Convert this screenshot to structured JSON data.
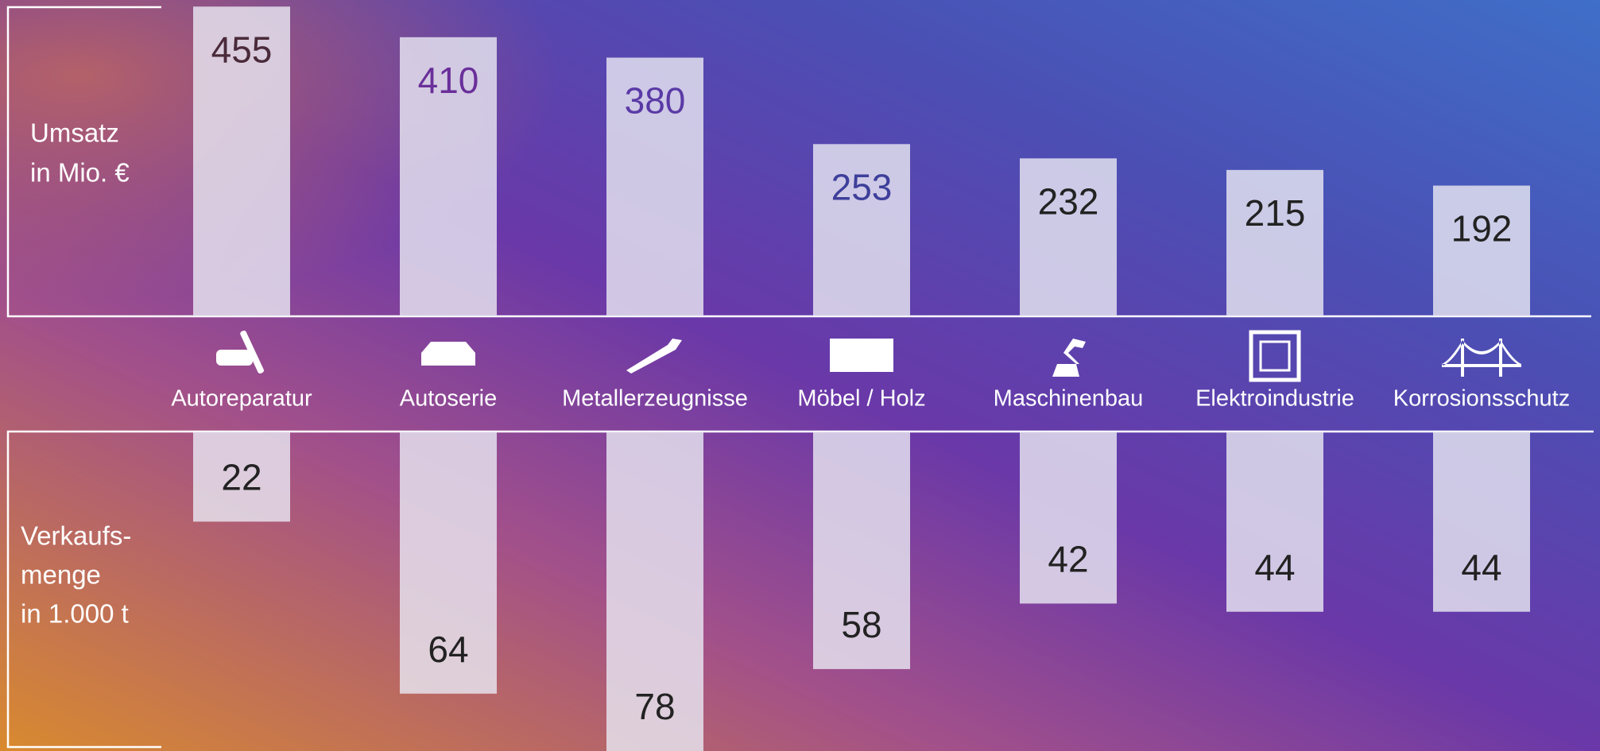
{
  "chart_data": [
    {
      "type": "bar",
      "ylabel": [
        "Umsatz",
        "in Mio. €"
      ],
      "categories": [
        "Autoreparatur",
        "Autoserie",
        "Metallerzeugnisse",
        "Möbel / Holz",
        "Maschinenbau",
        "Elektroindustrie",
        "Korrosionsschutz"
      ],
      "values": [
        455,
        410,
        380,
        253,
        232,
        215,
        192
      ],
      "color": "#e8e6f2",
      "ylim": [
        0,
        460
      ]
    },
    {
      "type": "bar",
      "ylabel": [
        "Verkaufs-",
        "menge",
        "in 1.000 t"
      ],
      "values": [
        22,
        64,
        78,
        58,
        42,
        44,
        44
      ],
      "color": "#e8e6f2",
      "ylim": [
        0,
        78
      ]
    }
  ]
}
